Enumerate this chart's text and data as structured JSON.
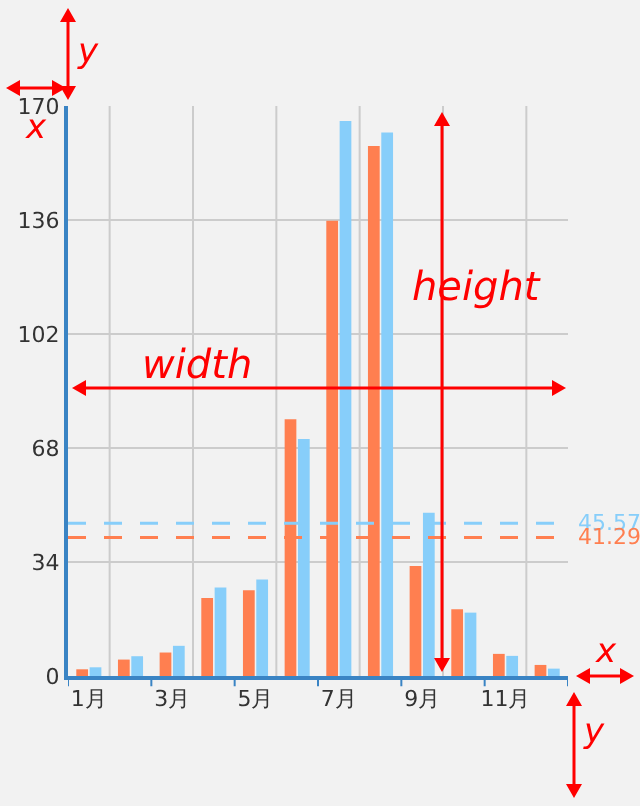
{
  "chart_data": {
    "type": "bar",
    "categories": [
      "1月",
      null,
      "3月",
      null,
      "5月",
      null,
      "7月",
      null,
      "9月",
      null,
      "11月",
      null
    ],
    "series": [
      {
        "color": "#ff7f50",
        "values": [
          2.0,
          4.9,
          7.0,
          23.3,
          25.6,
          76.6,
          135.8,
          158.1,
          32.8,
          19.9,
          6.6,
          3.3
        ]
      },
      {
        "color": "#87cefa",
        "values": [
          2.6,
          5.9,
          9.0,
          26.4,
          28.8,
          70.7,
          165.5,
          162.1,
          48.7,
          18.9,
          6.0,
          2.2
        ]
      }
    ],
    "ylim": [
      0,
      170
    ],
    "yticks": [
      0,
      34,
      68,
      102,
      136,
      170
    ],
    "grid": true,
    "ref_lines": [
      {
        "axis": "y",
        "value": 45.57,
        "label": "45.57",
        "color": "#87cefa",
        "line_style": "dashed"
      },
      {
        "axis": "y",
        "value": 41.29,
        "label": "41.29",
        "color": "#ff7f50",
        "line_style": "dashed"
      }
    ],
    "annotations": [
      "y",
      "x",
      "width",
      "height",
      "x",
      "y"
    ]
  }
}
